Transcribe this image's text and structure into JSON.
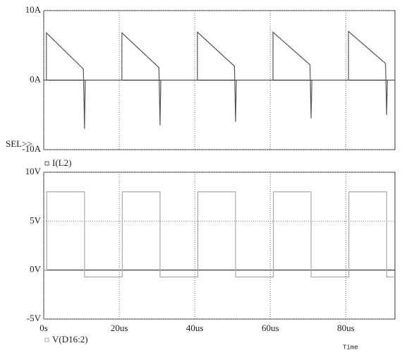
{
  "chart_data": [
    {
      "type": "line",
      "yticks": [
        {
          "value": 10,
          "label": "10A"
        },
        {
          "value": 0,
          "label": "0A"
        },
        {
          "value": -10,
          "label": "-10A"
        }
      ],
      "ylim": [
        -10,
        10
      ],
      "xlim": [
        0,
        93
      ],
      "grid": true,
      "axis_label": "SEL>>",
      "x": [
        0,
        0.7,
        0.7,
        10.5,
        10.8,
        11,
        20,
        20.7,
        20.7,
        30.5,
        30.8,
        31,
        40,
        40.7,
        40.7,
        50.5,
        50.8,
        51,
        60,
        60.7,
        60.7,
        70.5,
        70.8,
        71,
        80,
        80.7,
        80.7,
        90.5,
        90.8,
        91,
        93
      ],
      "series": [
        {
          "name": "I(L2)",
          "color": "#555555",
          "values": [
            0,
            0,
            6.8,
            1.6,
            -7,
            0,
            0,
            0,
            6.8,
            1.8,
            -6.5,
            0,
            0,
            0,
            6.9,
            2.0,
            -6,
            0,
            0,
            0,
            6.9,
            2.2,
            -5.5,
            0,
            0,
            0,
            7,
            2.4,
            -5,
            0,
            0
          ]
        }
      ]
    },
    {
      "type": "line",
      "yticks": [
        {
          "value": 10,
          "label": "10V"
        },
        {
          "value": 5,
          "label": "5V"
        },
        {
          "value": 0,
          "label": "0V"
        },
        {
          "value": -5,
          "label": "-5V"
        }
      ],
      "ylim": [
        -5,
        10
      ],
      "xlim": [
        0,
        93
      ],
      "grid": true,
      "xlabel": "Time",
      "xticks": [
        {
          "value": 0,
          "label": "0s"
        },
        {
          "value": 20,
          "label": "20us"
        },
        {
          "value": 40,
          "label": "40us"
        },
        {
          "value": 60,
          "label": "60us"
        },
        {
          "value": 80,
          "label": "80us"
        }
      ],
      "x": [
        0,
        0.8,
        0.8,
        10.8,
        10.8,
        20.8,
        20.8,
        30.8,
        30.8,
        40.8,
        40.8,
        50.8,
        50.8,
        60.8,
        60.8,
        70.8,
        70.8,
        80.8,
        80.8,
        90.8,
        90.8,
        93
      ],
      "series": [
        {
          "name": "V(D16:2)",
          "color": "#aaaaaa",
          "values": [
            0,
            0,
            8,
            8,
            -0.7,
            -0.7,
            8,
            8,
            -0.7,
            -0.7,
            8,
            8,
            -0.7,
            -0.7,
            8,
            8,
            -0.7,
            -0.7,
            8,
            8,
            -0.7,
            -0.7
          ]
        }
      ]
    }
  ]
}
